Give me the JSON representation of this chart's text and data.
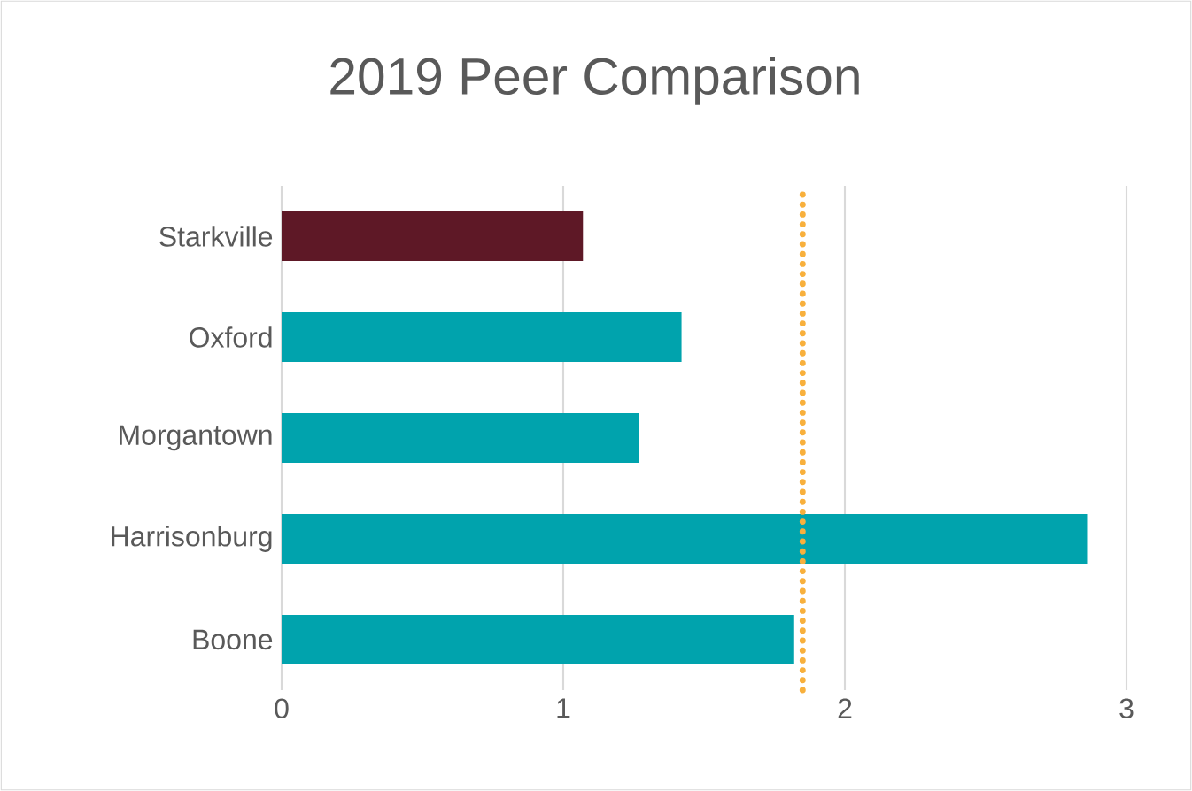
{
  "chart_data": {
    "type": "bar",
    "orientation": "horizontal",
    "title": "2019 Peer Comparison",
    "categories": [
      "Starkville",
      "Oxford",
      "Morgantown",
      "Harrisonburg",
      "Boone"
    ],
    "values": [
      1.07,
      1.42,
      1.27,
      2.86,
      1.82
    ],
    "colors": [
      "#5e1826",
      "#00a3ad",
      "#00a3ad",
      "#00a3ad",
      "#00a3ad"
    ],
    "xlim": [
      0,
      3
    ],
    "xticks": [
      0,
      1,
      2,
      3
    ],
    "grid": "x",
    "ref_lines": [
      {
        "axis": "x",
        "value": 1.85,
        "color": "#f8b03c",
        "line_style": "dotted"
      }
    ]
  }
}
